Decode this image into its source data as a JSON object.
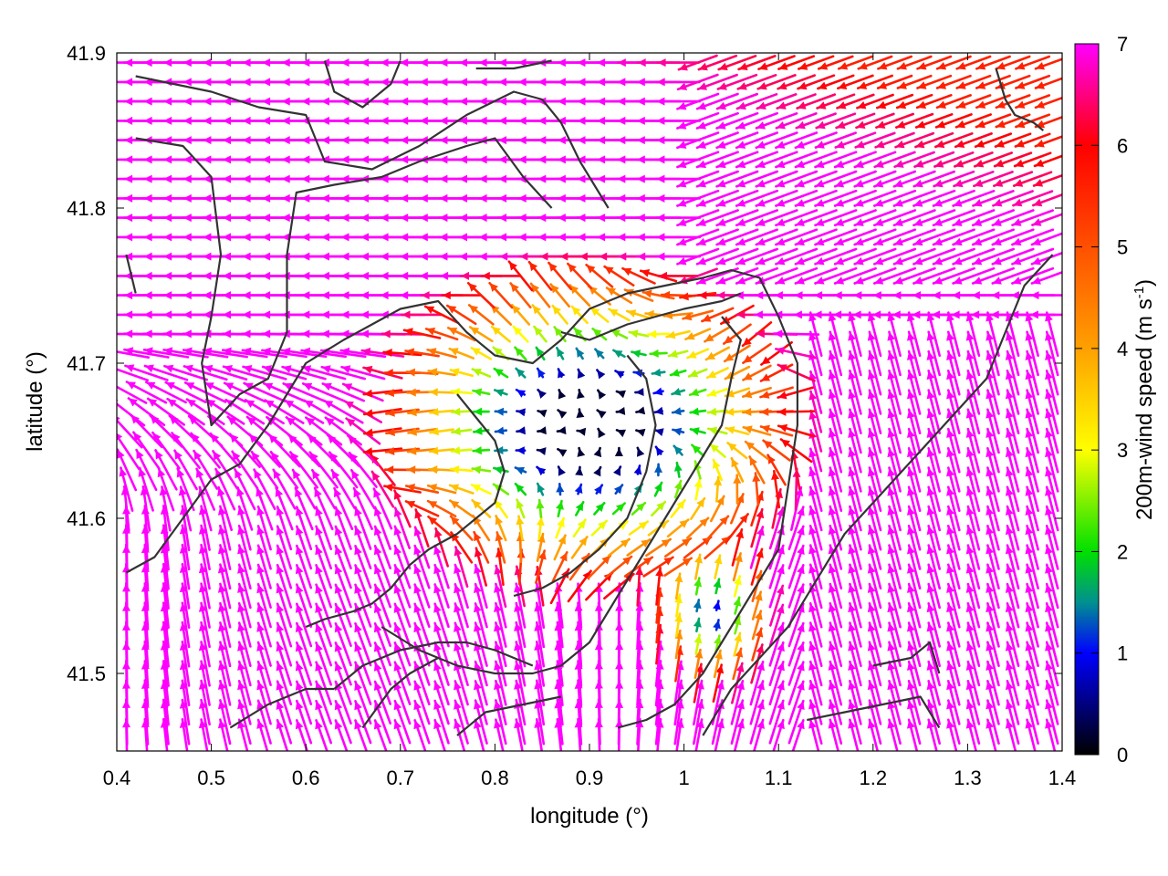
{
  "chart_data": {
    "type": "vector-field",
    "title": "",
    "xlabel": "longitude (°)",
    "ylabel": "latitude (°)",
    "xlim": [
      0.4,
      1.4
    ],
    "ylim": [
      41.45,
      41.9
    ],
    "xticks": [
      0.4,
      0.5,
      0.6,
      0.7,
      0.8,
      0.9,
      1.0,
      1.1,
      1.2,
      1.3,
      1.4
    ],
    "xtick_labels": [
      "0.4",
      "0.5",
      "0.6",
      "0.7",
      "0.8",
      "0.9",
      "1",
      "1.1",
      "1.2",
      "1.3",
      "1.4"
    ],
    "yticks": [
      41.5,
      41.6,
      41.7,
      41.8,
      41.9
    ],
    "ytick_labels": [
      "41.5",
      "41.6",
      "41.7",
      "41.8",
      "41.9"
    ],
    "grid": false,
    "colorbar": {
      "label_main": "200m-wind speed (m s",
      "label_sup": "-1",
      "label_end": ")",
      "range": [
        0,
        7
      ],
      "ticks": [
        0,
        1,
        2,
        3,
        4,
        5,
        6,
        7
      ],
      "tick_labels": [
        "0",
        "1",
        "2",
        "3",
        "4",
        "5",
        "6",
        "7"
      ],
      "palette": [
        {
          "v": 0.0,
          "color": "#000000"
        },
        {
          "v": 1.0,
          "color": "#0000ff"
        },
        {
          "v": 1.5,
          "color": "#009090"
        },
        {
          "v": 2.0,
          "color": "#00e000"
        },
        {
          "v": 3.0,
          "color": "#ffff00"
        },
        {
          "v": 4.0,
          "color": "#ffa000"
        },
        {
          "v": 5.0,
          "color": "#ff5000"
        },
        {
          "v": 6.0,
          "color": "#ff0000"
        },
        {
          "v": 7.0,
          "color": "#ff00ff"
        }
      ]
    },
    "field": {
      "description_units": "m s-1",
      "low_wind_center": [
        0.9,
        41.66
      ],
      "secondary_low_center": [
        1.03,
        41.54
      ],
      "background_speed": 7.2,
      "northern_flow_direction": "westward",
      "southern_flow_direction": "northward"
    },
    "outline_color": "#333333",
    "outlines": [
      [
        [
          0.42,
          41.885
        ],
        [
          0.5,
          41.875
        ],
        [
          0.55,
          41.865
        ],
        [
          0.6,
          41.86
        ],
        [
          0.62,
          41.83
        ],
        [
          0.67,
          41.825
        ],
        [
          0.72,
          41.84
        ],
        [
          0.77,
          41.86
        ],
        [
          0.82,
          41.875
        ],
        [
          0.85,
          41.87
        ],
        [
          0.87,
          41.855
        ],
        [
          0.89,
          41.83
        ],
        [
          0.92,
          41.8
        ]
      ],
      [
        [
          0.42,
          41.845
        ],
        [
          0.47,
          41.84
        ],
        [
          0.5,
          41.82
        ],
        [
          0.51,
          41.77
        ],
        [
          0.5,
          41.73
        ],
        [
          0.49,
          41.7
        ],
        [
          0.5,
          41.66
        ],
        [
          0.53,
          41.68
        ],
        [
          0.56,
          41.69
        ],
        [
          0.58,
          41.72
        ],
        [
          0.58,
          41.77
        ],
        [
          0.59,
          41.81
        ],
        [
          0.63,
          41.815
        ],
        [
          0.68,
          41.82
        ],
        [
          0.72,
          41.83
        ],
        [
          0.77,
          41.84
        ],
        [
          0.8,
          41.845
        ],
        [
          0.83,
          41.82
        ],
        [
          0.86,
          41.8
        ]
      ],
      [
        [
          0.62,
          41.895
        ],
        [
          0.63,
          41.875
        ],
        [
          0.66,
          41.865
        ],
        [
          0.69,
          41.88
        ],
        [
          0.7,
          41.895
        ]
      ],
      [
        [
          0.78,
          41.89
        ],
        [
          0.82,
          41.89
        ],
        [
          0.86,
          41.895
        ]
      ],
      [
        [
          0.41,
          41.77
        ],
        [
          0.42,
          41.745
        ]
      ],
      [
        [
          0.41,
          41.565
        ],
        [
          0.44,
          41.575
        ],
        [
          0.47,
          41.6
        ],
        [
          0.5,
          41.625
        ],
        [
          0.53,
          41.635
        ],
        [
          0.56,
          41.66
        ],
        [
          0.58,
          41.68
        ],
        [
          0.6,
          41.7
        ],
        [
          0.64,
          41.715
        ],
        [
          0.67,
          41.725
        ],
        [
          0.7,
          41.735
        ],
        [
          0.74,
          41.74
        ],
        [
          0.77,
          41.72
        ],
        [
          0.8,
          41.705
        ],
        [
          0.84,
          41.7
        ],
        [
          0.87,
          41.715
        ],
        [
          0.9,
          41.735
        ],
        [
          0.94,
          41.745
        ],
        [
          0.98,
          41.75
        ],
        [
          1.02,
          41.755
        ],
        [
          1.05,
          41.76
        ],
        [
          1.08,
          41.755
        ],
        [
          1.1,
          41.73
        ],
        [
          1.12,
          41.7
        ],
        [
          1.12,
          41.66
        ],
        [
          1.11,
          41.62
        ],
        [
          1.1,
          41.58
        ],
        [
          1.07,
          41.55
        ],
        [
          1.04,
          41.52
        ],
        [
          1.02,
          41.5
        ],
        [
          0.99,
          41.48
        ],
        [
          0.96,
          41.47
        ],
        [
          0.93,
          41.465
        ]
      ],
      [
        [
          0.87,
          41.72
        ],
        [
          0.9,
          41.715
        ],
        [
          0.94,
          41.725
        ],
        [
          0.97,
          41.73
        ],
        [
          1.0,
          41.735
        ],
        [
          1.04,
          41.74
        ],
        [
          1.06,
          41.745
        ]
      ],
      [
        [
          1.04,
          41.73
        ],
        [
          1.06,
          41.715
        ],
        [
          1.05,
          41.69
        ],
        [
          1.04,
          41.66
        ],
        [
          1.02,
          41.64
        ],
        [
          1.0,
          41.62
        ],
        [
          0.98,
          41.6
        ],
        [
          0.96,
          41.58
        ],
        [
          0.94,
          41.56
        ],
        [
          0.92,
          41.54
        ],
        [
          0.9,
          41.52
        ],
        [
          0.87,
          41.505
        ],
        [
          0.84,
          41.5
        ],
        [
          0.8,
          41.5
        ],
        [
          0.76,
          41.505
        ],
        [
          0.72,
          41.515
        ],
        [
          0.68,
          41.53
        ]
      ],
      [
        [
          0.76,
          41.68
        ],
        [
          0.78,
          41.665
        ],
        [
          0.8,
          41.65
        ],
        [
          0.81,
          41.63
        ],
        [
          0.8,
          41.61
        ],
        [
          0.78,
          41.6
        ],
        [
          0.76,
          41.59
        ],
        [
          0.73,
          41.58
        ],
        [
          0.71,
          41.57
        ],
        [
          0.69,
          41.555
        ],
        [
          0.67,
          41.545
        ],
        [
          0.65,
          41.54
        ],
        [
          0.62,
          41.535
        ],
        [
          0.6,
          41.53
        ]
      ],
      [
        [
          0.94,
          41.705
        ],
        [
          0.96,
          41.69
        ],
        [
          0.97,
          41.66
        ],
        [
          0.96,
          41.63
        ],
        [
          0.94,
          41.6
        ],
        [
          0.91,
          41.58
        ],
        [
          0.88,
          41.565
        ],
        [
          0.85,
          41.555
        ],
        [
          0.82,
          41.55
        ]
      ],
      [
        [
          0.63,
          41.49
        ],
        [
          0.66,
          41.505
        ],
        [
          0.7,
          41.515
        ],
        [
          0.74,
          41.52
        ],
        [
          0.77,
          41.52
        ],
        [
          0.8,
          41.515
        ],
        [
          0.84,
          41.505
        ]
      ],
      [
        [
          0.52,
          41.465
        ],
        [
          0.56,
          41.48
        ],
        [
          0.6,
          41.49
        ],
        [
          0.63,
          41.49
        ]
      ],
      [
        [
          0.66,
          41.465
        ],
        [
          0.69,
          41.49
        ],
        [
          0.71,
          41.5
        ],
        [
          0.74,
          41.51
        ]
      ],
      [
        [
          0.76,
          41.46
        ],
        [
          0.79,
          41.475
        ],
        [
          0.83,
          41.48
        ],
        [
          0.87,
          41.485
        ]
      ],
      [
        [
          1.02,
          41.46
        ],
        [
          1.05,
          41.49
        ],
        [
          1.08,
          41.51
        ],
        [
          1.11,
          41.53
        ],
        [
          1.14,
          41.56
        ],
        [
          1.17,
          41.59
        ],
        [
          1.2,
          41.61
        ],
        [
          1.23,
          41.63
        ],
        [
          1.26,
          41.65
        ],
        [
          1.29,
          41.67
        ],
        [
          1.32,
          41.69
        ],
        [
          1.34,
          41.72
        ],
        [
          1.36,
          41.75
        ],
        [
          1.39,
          41.77
        ]
      ],
      [
        [
          1.13,
          41.47
        ],
        [
          1.17,
          41.475
        ],
        [
          1.21,
          41.48
        ],
        [
          1.25,
          41.485
        ],
        [
          1.27,
          41.465
        ]
      ],
      [
        [
          1.2,
          41.505
        ],
        [
          1.24,
          41.51
        ],
        [
          1.26,
          41.52
        ],
        [
          1.27,
          41.5
        ]
      ],
      [
        [
          1.33,
          41.89
        ],
        [
          1.34,
          41.87
        ],
        [
          1.35,
          41.86
        ],
        [
          1.37,
          41.855
        ],
        [
          1.38,
          41.85
        ]
      ]
    ]
  }
}
